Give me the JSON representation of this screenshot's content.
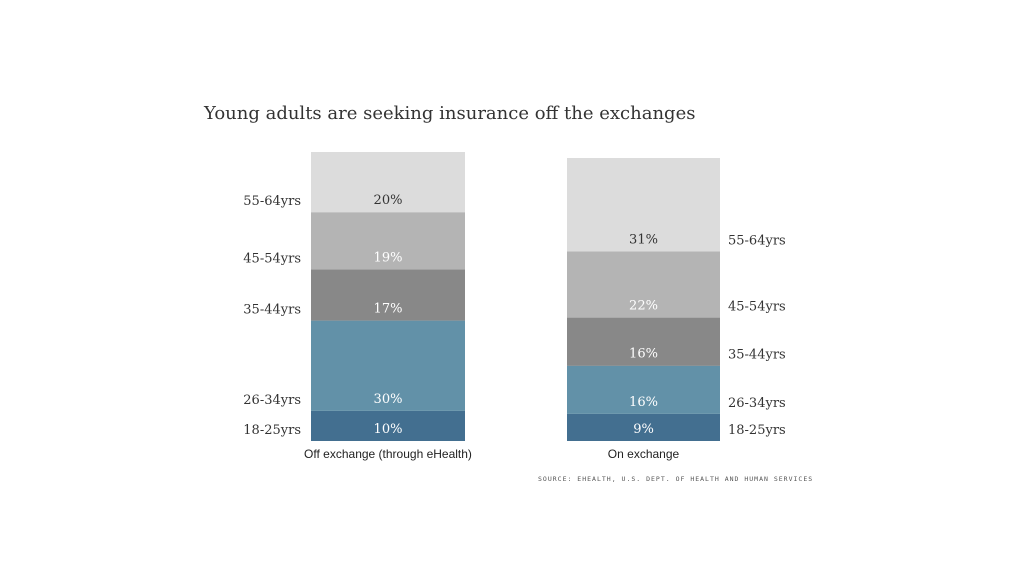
{
  "chart_data": {
    "type": "bar",
    "stacked": true,
    "percent_stacked": true,
    "title": "Young adults are seeking insurance off the exchanges",
    "categories": [
      "Off exchange (through eHealth)",
      "On exchange"
    ],
    "series": [
      {
        "name": "18-25yrs",
        "values": [
          10,
          9
        ],
        "value_labels": [
          "10%",
          "9%"
        ],
        "color": "#436f90",
        "label_color": "#ffffff"
      },
      {
        "name": "26-34yrs",
        "values": [
          30,
          16
        ],
        "value_labels": [
          "30%",
          "16%"
        ],
        "color": "#6291a8",
        "label_color": "#ffffff"
      },
      {
        "name": "35-44yrs",
        "values": [
          17,
          16
        ],
        "value_labels": [
          "17%",
          "16%"
        ],
        "color": "#888888",
        "label_color": "#ffffff"
      },
      {
        "name": "45-54yrs",
        "values": [
          19,
          22
        ],
        "value_labels": [
          "19%",
          "22%"
        ],
        "color": "#b4b4b4",
        "label_color": "#ffffff"
      },
      {
        "name": "55-64yrs",
        "values": [
          20,
          31
        ],
        "value_labels": [
          "20%",
          "31%"
        ],
        "color": "#dcdcdc",
        "label_color": "#333333"
      }
    ],
    "legend_placement": "inline labels beside bars (left of first bar, right of second bar)",
    "grid": false,
    "source": "SOURCE: EHEALTH, U.S. DEPT. OF HEALTH AND HUMAN SERVICES"
  }
}
